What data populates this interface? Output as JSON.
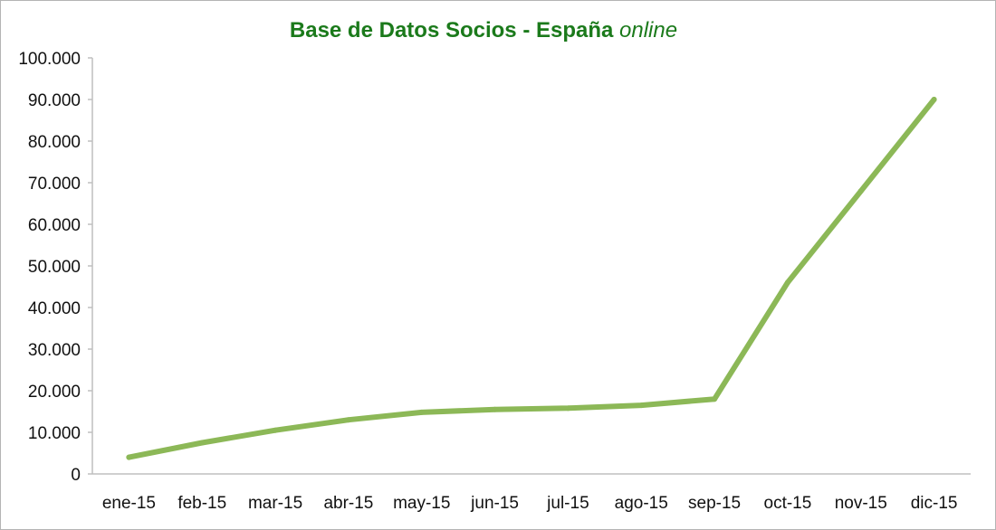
{
  "chart_data": {
    "type": "line",
    "title": "Base de Datos Socios - España",
    "title_suffix": "online",
    "categories": [
      "ene-15",
      "feb-15",
      "mar-15",
      "abr-15",
      "may-15",
      "jun-15",
      "jul-15",
      "ago-15",
      "sep-15",
      "oct-15",
      "nov-15",
      "dic-15"
    ],
    "series": [
      {
        "values": [
          4000,
          7500,
          10500,
          13000,
          14800,
          15500,
          15800,
          16500,
          18000,
          46000,
          68000,
          90000
        ]
      }
    ],
    "y_ticks": [
      "0",
      "10.000",
      "20.000",
      "30.000",
      "40.000",
      "50.000",
      "60.000",
      "70.000",
      "80.000",
      "90.000",
      "100.000"
    ],
    "ylim": [
      0,
      100000
    ],
    "xlabel": "",
    "ylabel": "",
    "grid": false,
    "legend": "none",
    "line_color": "#8cb857",
    "title_color": "#1b7a1b"
  }
}
